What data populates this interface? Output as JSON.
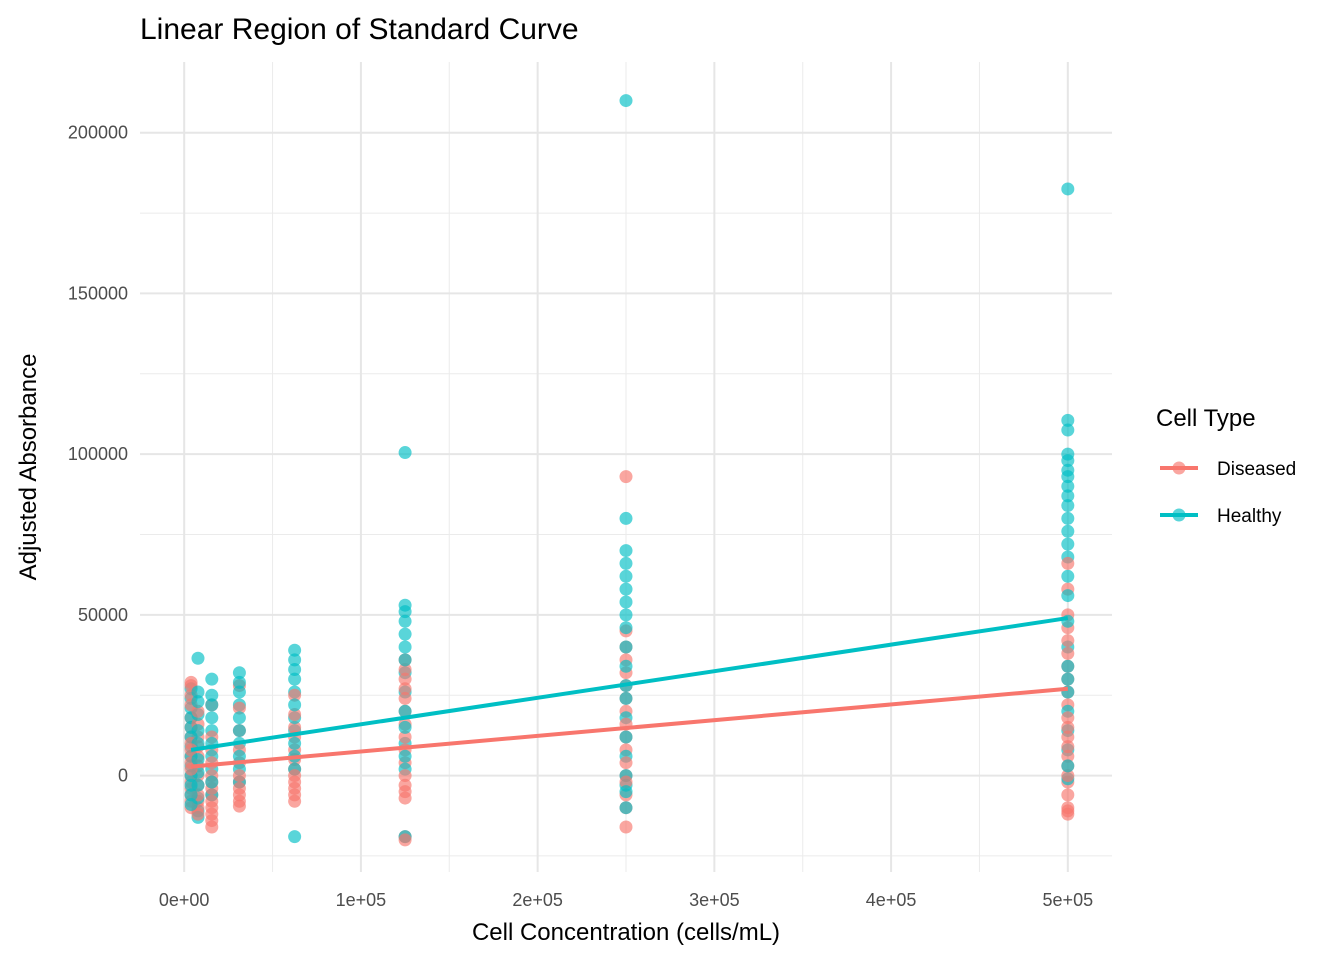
{
  "chart_data": {
    "type": "scatter",
    "title": "Linear Region of Standard Curve",
    "xlabel": "Cell Concentration (cells/mL)",
    "ylabel": "Adjusted Absorbance",
    "xlim": [
      -25000,
      525000
    ],
    "ylim": [
      -30000,
      222000
    ],
    "x_ticks": [
      0,
      100000,
      200000,
      300000,
      400000,
      500000
    ],
    "x_tick_labels": [
      "0e+00",
      "1e+05",
      "2e+05",
      "3e+05",
      "4e+05",
      "5e+05"
    ],
    "y_ticks": [
      0,
      50000,
      100000,
      150000,
      200000
    ],
    "y_tick_labels": [
      "0",
      "50000",
      "100000",
      "150000",
      "200000"
    ],
    "grid": true,
    "legend": {
      "title": "Cell Type",
      "position": "right"
    },
    "series": [
      {
        "name": "Diseased",
        "color": "#F8766D",
        "fit_line": {
          "x": [
            3906,
            500000
          ],
          "y": [
            2800,
            27000
          ]
        },
        "points": [
          {
            "x": 3906,
            "ys": [
              -10000,
              -8000,
              -6000,
              -4000,
              -2000,
              0,
              2000,
              4000,
              6000,
              8000,
              10000,
              12000,
              15000,
              18000,
              22000,
              25000,
              28000,
              29000
            ]
          },
          {
            "x": 7812,
            "ys": [
              -12000,
              -10000,
              -8000,
              -6000,
              -3000,
              0,
              3000,
              6000,
              9000,
              12000,
              16000,
              20000
            ]
          },
          {
            "x": 15625,
            "ys": [
              -16000,
              -14000,
              -12000,
              -10000,
              -8000,
              -6000,
              -4000,
              -2000,
              0,
              4000,
              8000,
              12000,
              22000
            ]
          },
          {
            "x": 31250,
            "ys": [
              -9500,
              -8000,
              -6000,
              -4000,
              -2000,
              0,
              4000,
              8000,
              14000,
              21000,
              28000
            ]
          },
          {
            "x": 62500,
            "ys": [
              -8000,
              -6000,
              -4000,
              -2000,
              0,
              2000,
              5000,
              8000,
              12000,
              15000,
              19000,
              25000
            ]
          },
          {
            "x": 125000,
            "ys": [
              -20000,
              -19000,
              -7000,
              -5000,
              -3000,
              0,
              4000,
              8000,
              12000,
              16000,
              20000,
              24000,
              27000,
              30000,
              33000,
              36000
            ]
          },
          {
            "x": 250000,
            "ys": [
              -16000,
              -10000,
              -6000,
              -2000,
              0,
              4000,
              8000,
              12000,
              16000,
              20000,
              24000,
              28000,
              32000,
              36000,
              40000,
              45000,
              93000
            ]
          },
          {
            "x": 500000,
            "ys": [
              -12000,
              -11000,
              -10000,
              -6000,
              -2000,
              0,
              3000,
              6000,
              9000,
              12000,
              15000,
              18000,
              22000,
              26000,
              30000,
              34000,
              38000,
              42000,
              46000,
              50000,
              58000,
              66000
            ]
          }
        ]
      },
      {
        "name": "Healthy",
        "color": "#00BFC4",
        "fit_line": {
          "x": [
            3906,
            500000
          ],
          "y": [
            8000,
            49000
          ]
        },
        "points": [
          {
            "x": 3906,
            "ys": [
              -9000,
              -6000,
              -3000,
              0,
              3000,
              6000,
              9000,
              12000,
              15000,
              18000,
              21000,
              24000,
              27000
            ]
          },
          {
            "x": 7812,
            "ys": [
              -13000,
              -11000,
              -7000,
              -3000,
              1000,
              5000,
              10000,
              14000,
              19000,
              23000,
              26000,
              36500
            ]
          },
          {
            "x": 15625,
            "ys": [
              -6000,
              -2000,
              2000,
              6000,
              10000,
              14000,
              18000,
              22000,
              25000,
              30000
            ]
          },
          {
            "x": 31250,
            "ys": [
              -2000,
              2000,
              6000,
              10000,
              14000,
              18000,
              22000,
              26000,
              29000,
              32000
            ]
          },
          {
            "x": 62500,
            "ys": [
              -19000,
              2000,
              6000,
              10000,
              14000,
              18000,
              22000,
              26000,
              30000,
              33000,
              36000,
              39000
            ]
          },
          {
            "x": 125000,
            "ys": [
              -19000,
              2000,
              6000,
              10000,
              15000,
              20000,
              26000,
              32000,
              36000,
              40000,
              44000,
              48000,
              51000,
              53000,
              100500
            ]
          },
          {
            "x": 250000,
            "ys": [
              -10000,
              -5000,
              -3000,
              0,
              6000,
              12000,
              18000,
              24000,
              28000,
              34000,
              40000,
              46000,
              50000,
              54000,
              58000,
              62000,
              66000,
              70000,
              80000,
              210000
            ]
          },
          {
            "x": 500000,
            "ys": [
              -1000,
              3000,
              8000,
              14000,
              20000,
              26000,
              30000,
              34000,
              40000,
              48000,
              56000,
              62000,
              68000,
              72000,
              76000,
              80000,
              84000,
              87000,
              90000,
              93000,
              95000,
              98000,
              100000,
              107500,
              110500,
              182500
            ]
          }
        ]
      }
    ]
  }
}
